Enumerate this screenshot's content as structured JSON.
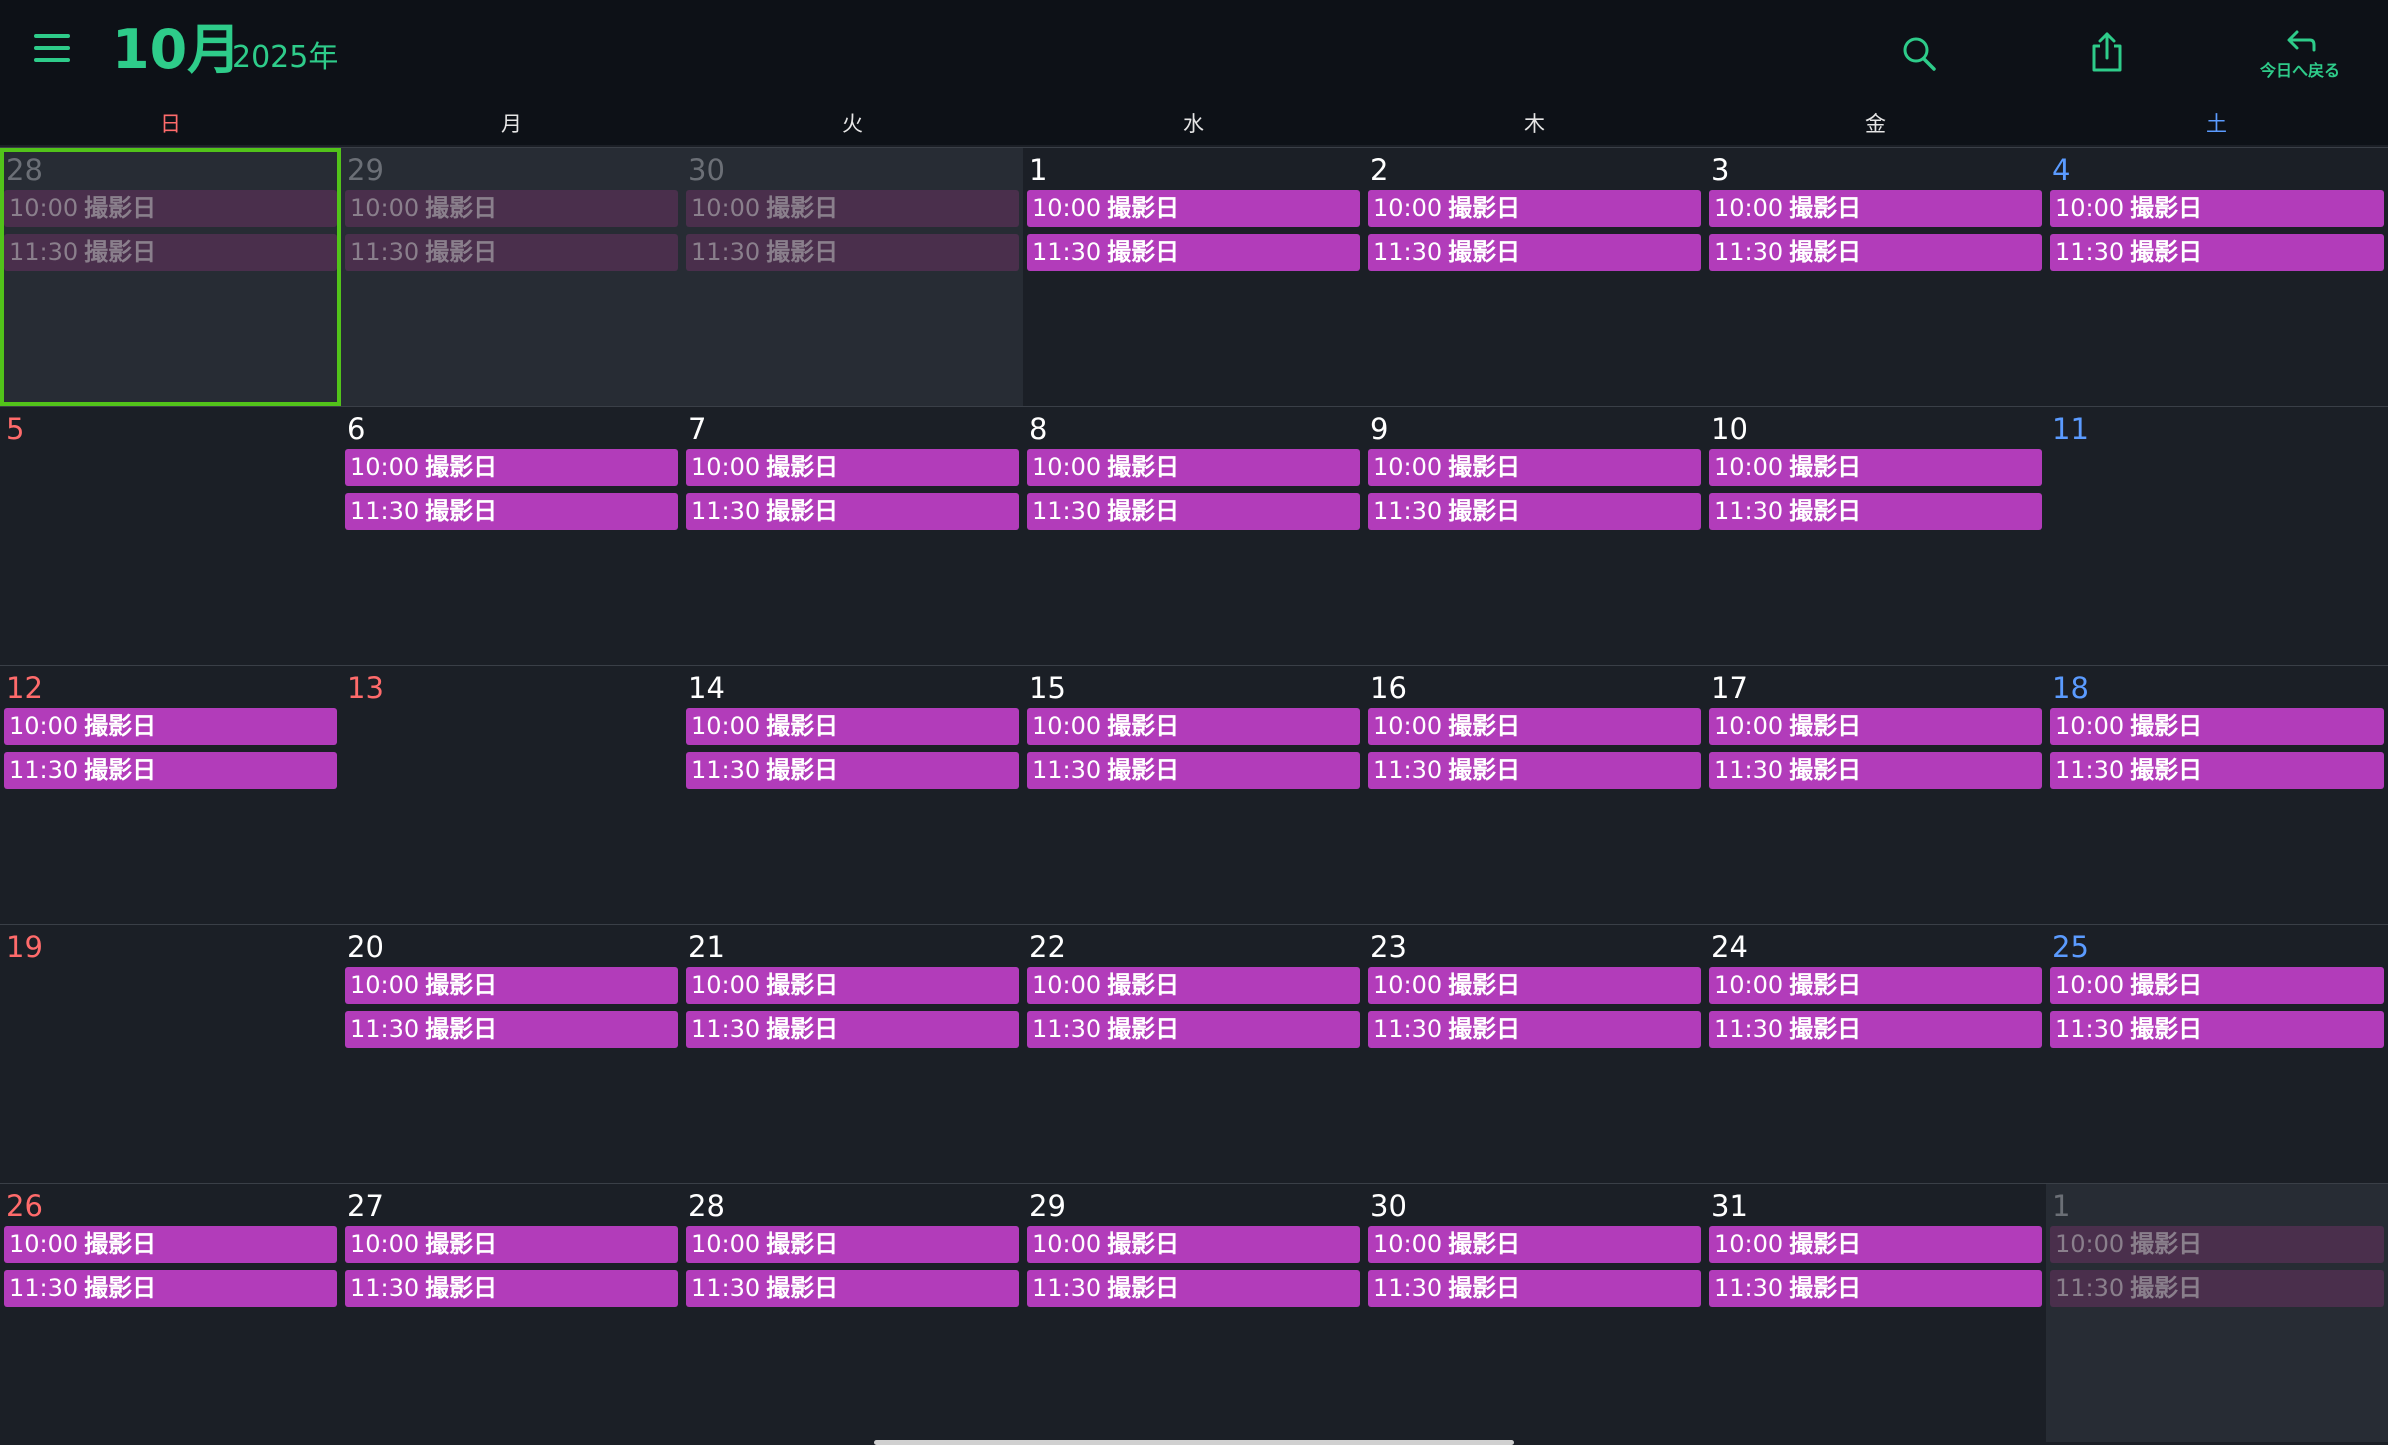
{
  "header": {
    "month": "10月",
    "year": "2025年",
    "today_label": "今日へ戻る",
    "icons": [
      "menu-icon",
      "search-icon",
      "share-icon",
      "undo-arrow-icon"
    ],
    "accent_color": "#2ecc8a"
  },
  "weekdays": [
    "日",
    "月",
    "火",
    "水",
    "木",
    "金",
    "土"
  ],
  "colors": {
    "event": "#b23cba",
    "sunday": "#ff6b6b",
    "saturday": "#5b9bff",
    "selected_outline": "#52c31a"
  },
  "event_templates": [
    {
      "time": "10:00",
      "title": "撮影日"
    },
    {
      "time": "11:30",
      "title": "撮影日"
    }
  ],
  "weeks": [
    [
      {
        "day": "28",
        "other": true,
        "selected": true,
        "events": true
      },
      {
        "day": "29",
        "other": true,
        "events": true
      },
      {
        "day": "30",
        "other": true,
        "events": true
      },
      {
        "day": "1",
        "events": true
      },
      {
        "day": "2",
        "events": true
      },
      {
        "day": "3",
        "events": true
      },
      {
        "day": "4",
        "events": true
      }
    ],
    [
      {
        "day": "5",
        "events": false
      },
      {
        "day": "6",
        "events": true
      },
      {
        "day": "7",
        "events": true
      },
      {
        "day": "8",
        "events": true
      },
      {
        "day": "9",
        "events": true
      },
      {
        "day": "10",
        "events": true
      },
      {
        "day": "11",
        "events": false
      }
    ],
    [
      {
        "day": "12",
        "events": true
      },
      {
        "day": "13",
        "holiday": true,
        "events": false
      },
      {
        "day": "14",
        "events": true
      },
      {
        "day": "15",
        "events": true
      },
      {
        "day": "16",
        "events": true
      },
      {
        "day": "17",
        "events": true
      },
      {
        "day": "18",
        "events": true
      }
    ],
    [
      {
        "day": "19",
        "events": false
      },
      {
        "day": "20",
        "events": true
      },
      {
        "day": "21",
        "events": true
      },
      {
        "day": "22",
        "events": true
      },
      {
        "day": "23",
        "events": true
      },
      {
        "day": "24",
        "events": true
      },
      {
        "day": "25",
        "events": true
      }
    ],
    [
      {
        "day": "26",
        "events": true
      },
      {
        "day": "27",
        "events": true
      },
      {
        "day": "28",
        "events": true
      },
      {
        "day": "29",
        "events": true
      },
      {
        "day": "30",
        "events": true
      },
      {
        "day": "31",
        "events": true
      },
      {
        "day": "1",
        "other": true,
        "events": true
      }
    ]
  ]
}
